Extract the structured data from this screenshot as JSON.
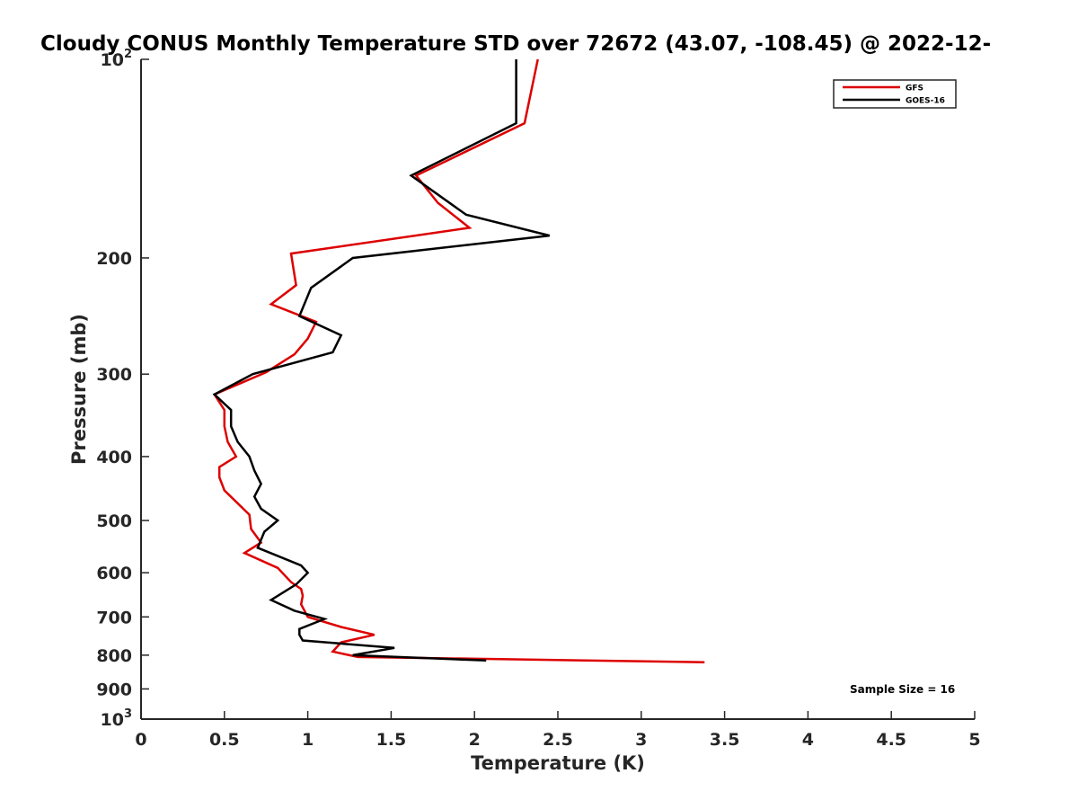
{
  "chart_data": {
    "type": "line",
    "title": "Cloudy CONUS Monthly Temperature STD over 72672 (43.07, -108.45) @ 2022-12-",
    "xlabel": "Temperature (K)",
    "ylabel": "Pressure (mb)",
    "xlim": [
      0,
      5
    ],
    "ylim": [
      100,
      1000
    ],
    "y_scale": "log",
    "y_reversed": true,
    "grid": false,
    "legend_position": "top-right",
    "x_ticks": [
      "0",
      "0.5",
      "1",
      "1.5",
      "2",
      "2.5",
      "3",
      "3.5",
      "4",
      "4.5",
      "5"
    ],
    "y_ticks": [
      {
        "value": 100,
        "base": "10",
        "exp": "2"
      },
      {
        "value": 200,
        "label": "200"
      },
      {
        "value": 300,
        "label": "300"
      },
      {
        "value": 400,
        "label": "400"
      },
      {
        "value": 500,
        "label": "500"
      },
      {
        "value": 600,
        "label": "600"
      },
      {
        "value": 700,
        "label": "700"
      },
      {
        "value": 800,
        "label": "800"
      },
      {
        "value": 900,
        "label": "900"
      },
      {
        "value": 1000,
        "base": "10",
        "exp": "3"
      }
    ],
    "series": [
      {
        "name": "GFS",
        "color": "#dd0000",
        "points": [
          [
            2.38,
            100
          ],
          [
            2.3,
            125
          ],
          [
            1.65,
            150
          ],
          [
            1.78,
            165
          ],
          [
            1.97,
            180
          ],
          [
            0.9,
            197
          ],
          [
            0.93,
            220
          ],
          [
            0.78,
            235
          ],
          [
            1.05,
            250
          ],
          [
            1.0,
            265
          ],
          [
            0.92,
            280
          ],
          [
            0.75,
            298
          ],
          [
            0.44,
            322
          ],
          [
            0.5,
            340
          ],
          [
            0.5,
            360
          ],
          [
            0.52,
            380
          ],
          [
            0.57,
            400
          ],
          [
            0.47,
            415
          ],
          [
            0.47,
            430
          ],
          [
            0.5,
            450
          ],
          [
            0.65,
            490
          ],
          [
            0.66,
            515
          ],
          [
            0.72,
            540
          ],
          [
            0.62,
            560
          ],
          [
            0.82,
            590
          ],
          [
            0.9,
            620
          ],
          [
            0.96,
            635
          ],
          [
            0.97,
            650
          ],
          [
            0.96,
            670
          ],
          [
            1.0,
            700
          ],
          [
            1.2,
            725
          ],
          [
            1.4,
            745
          ],
          [
            1.2,
            765
          ],
          [
            1.15,
            790
          ],
          [
            1.3,
            805
          ],
          [
            3.38,
            820
          ]
        ]
      },
      {
        "name": "GOES-16",
        "color": "#000000",
        "points": [
          [
            2.25,
            100
          ],
          [
            2.25,
            125
          ],
          [
            1.62,
            150
          ],
          [
            1.95,
            172
          ],
          [
            2.45,
            185
          ],
          [
            1.27,
            200
          ],
          [
            1.02,
            222
          ],
          [
            0.95,
            245
          ],
          [
            1.2,
            262
          ],
          [
            1.15,
            278
          ],
          [
            0.67,
            300
          ],
          [
            0.44,
            322
          ],
          [
            0.54,
            340
          ],
          [
            0.54,
            360
          ],
          [
            0.58,
            380
          ],
          [
            0.65,
            400
          ],
          [
            0.68,
            420
          ],
          [
            0.72,
            440
          ],
          [
            0.68,
            460
          ],
          [
            0.72,
            480
          ],
          [
            0.82,
            500
          ],
          [
            0.74,
            520
          ],
          [
            0.7,
            550
          ],
          [
            0.96,
            585
          ],
          [
            1.0,
            600
          ],
          [
            0.93,
            625
          ],
          [
            0.78,
            660
          ],
          [
            0.92,
            685
          ],
          [
            1.1,
            705
          ],
          [
            0.95,
            730
          ],
          [
            0.95,
            745
          ],
          [
            0.97,
            760
          ],
          [
            1.52,
            780
          ],
          [
            1.27,
            800
          ],
          [
            2.07,
            815
          ]
        ]
      }
    ],
    "annotations": [
      "Sample Size = 16"
    ]
  }
}
